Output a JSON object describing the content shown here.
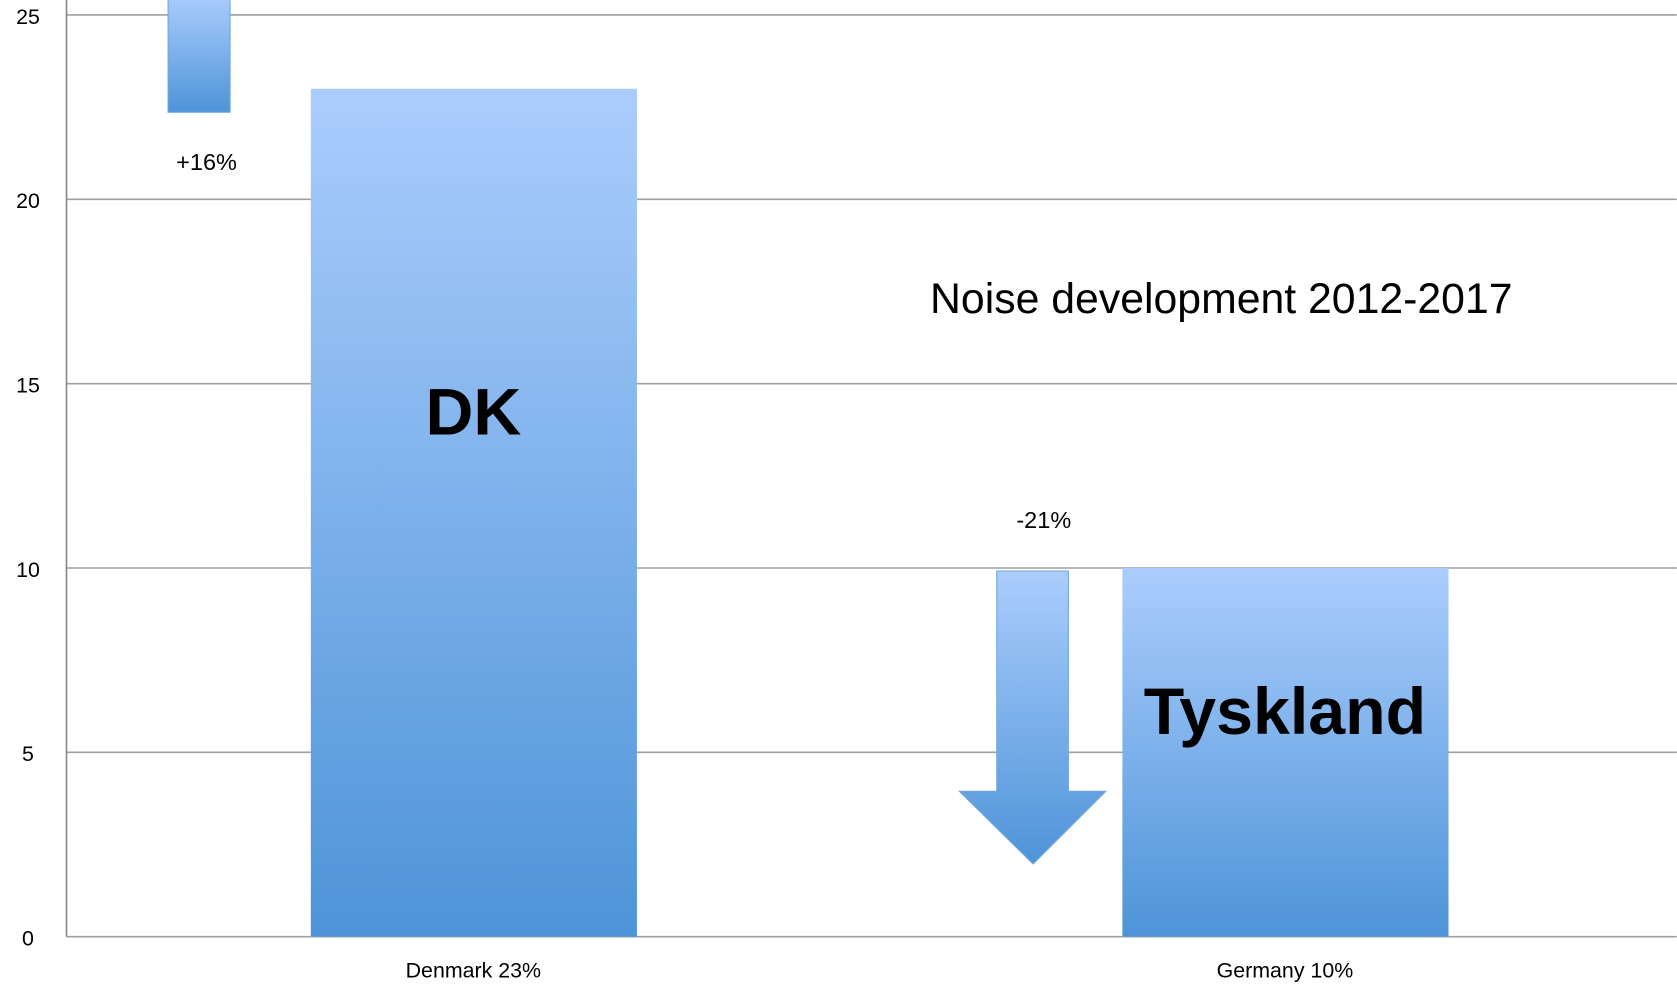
{
  "chart_data": {
    "type": "bar",
    "title": "Noise development 2012-2017",
    "categories": [
      "Denmark 23%",
      "Germany 10%"
    ],
    "values": [
      23,
      10
    ],
    "bar_labels": [
      "DK",
      "Tyskland"
    ],
    "annotations": [
      "+16%",
      "-21%"
    ],
    "color": "#5b9bdc",
    "ylim": [
      0,
      25
    ],
    "yticks": [
      0,
      5,
      10,
      15,
      20,
      25
    ],
    "grid": true
  }
}
